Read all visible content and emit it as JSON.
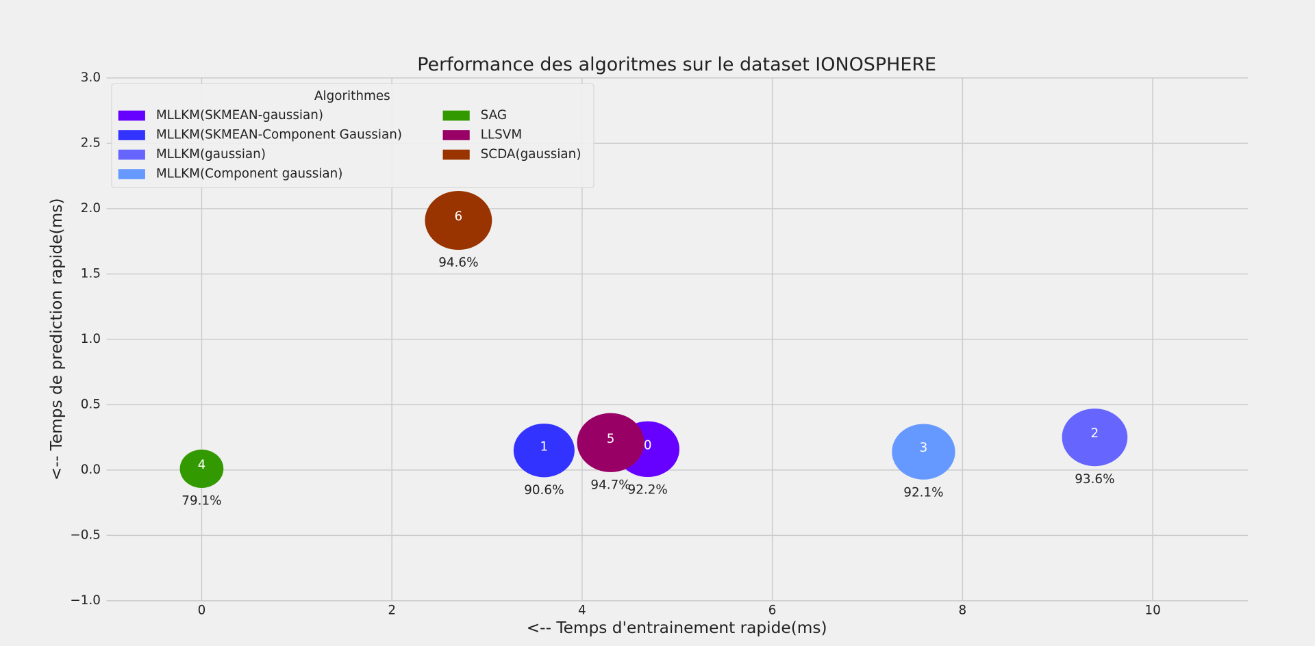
{
  "chart_data": {
    "type": "bubble",
    "title": "Performance des algoritmes sur le dataset IONOSPHERE",
    "x_label": "<-- Temps d'entrainement rapide(ms)",
    "y_label": "<-- Temps de prediction rapide(ms)",
    "legend_title": "Algorithmes",
    "legend": "upper left",
    "grid": true,
    "xlim": [
      -1,
      11
    ],
    "ylim": [
      -1,
      3
    ],
    "xticks": [
      0,
      2,
      4,
      6,
      8,
      10
    ],
    "yticks": [
      {
        "value": -1,
        "label": "−1.0"
      },
      {
        "value": -0.5,
        "label": "−0.5"
      },
      {
        "value": 0,
        "label": "0.0"
      },
      {
        "value": 0.5,
        "label": "0.5"
      },
      {
        "value": 1,
        "label": "1.0"
      },
      {
        "value": 1.5,
        "label": "1.5"
      },
      {
        "value": 2,
        "label": "2.0"
      },
      {
        "value": 2.5,
        "label": "2.5"
      },
      {
        "value": 3,
        "label": "3.0"
      }
    ],
    "series": [
      {
        "name": "MLLKM(SKMEAN-gaussian)",
        "color": "#6600ff",
        "labels": [
          "0"
        ],
        "x": [
          4.69
        ],
        "values": [
          0.16
        ],
        "sizes": [
          92.2
        ],
        "value_labels": [
          "92.2%"
        ]
      },
      {
        "name": "MLLKM(SKMEAN-Component Gaussian)",
        "color": "#3333ff",
        "labels": [
          "1"
        ],
        "x": [
          3.6
        ],
        "values": [
          0.15
        ],
        "sizes": [
          90.6
        ],
        "value_labels": [
          "90.6%"
        ]
      },
      {
        "name": "MLLKM(gaussian)",
        "color": "#6666ff",
        "labels": [
          "2"
        ],
        "x": [
          9.39
        ],
        "values": [
          0.25
        ],
        "sizes": [
          93.6
        ],
        "value_labels": [
          "93.6%"
        ]
      },
      {
        "name": "MLLKM(Component gaussian)",
        "color": "#6699ff",
        "labels": [
          "3"
        ],
        "x": [
          7.59
        ],
        "values": [
          0.14
        ],
        "sizes": [
          92.1
        ],
        "value_labels": [
          "92.1%"
        ]
      },
      {
        "name": "SAG",
        "color": "#339900",
        "labels": [
          "4"
        ],
        "x": [
          0
        ],
        "values": [
          0.01
        ],
        "sizes": [
          79.1
        ],
        "value_labels": [
          "79.1%"
        ]
      },
      {
        "name": "LLSVM",
        "color": "#990066",
        "labels": [
          "5"
        ],
        "x": [
          4.3
        ],
        "values": [
          0.21
        ],
        "sizes": [
          94.7
        ],
        "value_labels": [
          "94.7%"
        ]
      },
      {
        "name": "SCDA(gaussian)",
        "color": "#993300",
        "labels": [
          "6"
        ],
        "x": [
          2.7
        ],
        "values": [
          1.91
        ],
        "sizes": [
          94.6
        ],
        "value_labels": [
          "94.6%"
        ]
      }
    ]
  }
}
